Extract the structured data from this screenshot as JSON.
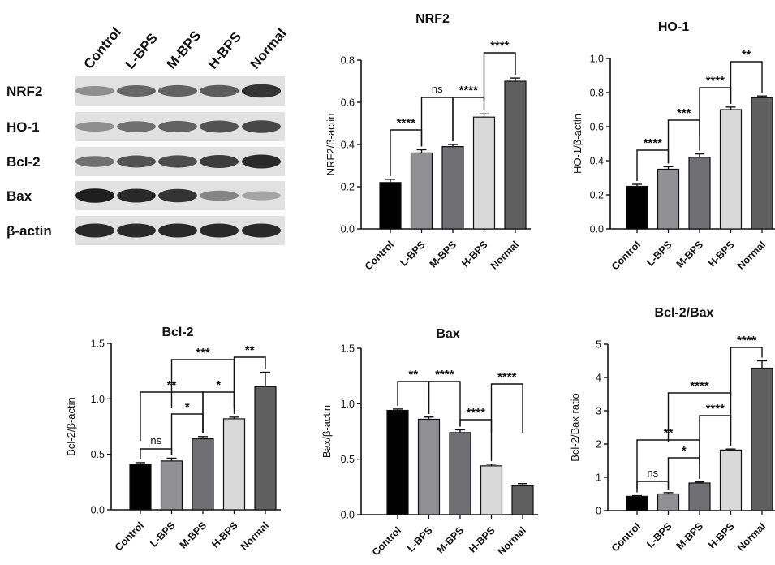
{
  "blot": {
    "lanes": [
      "Control",
      "L-BPS",
      "M-BPS",
      "H-BPS",
      "Normal"
    ],
    "rows": [
      {
        "label": "NRF2",
        "intensity": [
          0.4,
          0.6,
          0.62,
          0.65,
          0.85
        ]
      },
      {
        "label": "HO-1",
        "intensity": [
          0.4,
          0.55,
          0.62,
          0.7,
          0.75
        ]
      },
      {
        "label": "Bcl-2",
        "intensity": [
          0.55,
          0.7,
          0.72,
          0.8,
          0.9
        ]
      },
      {
        "label": "Bax",
        "intensity": [
          0.95,
          0.9,
          0.85,
          0.45,
          0.3
        ]
      },
      {
        "label": "β-actin",
        "intensity": [
          0.9,
          0.9,
          0.9,
          0.9,
          0.9
        ]
      }
    ]
  },
  "colors": {
    "bars": [
      "#000000",
      "#8f8f94",
      "#6e6e73",
      "#d9d9d9",
      "#5f5f5f"
    ]
  },
  "chart_data": [
    {
      "type": "bar",
      "title": "NRF2",
      "ylabel": "NRF2/β-actin",
      "categories": [
        "Control",
        "L-BPS",
        "M-BPS",
        "H-BPS",
        "Normal"
      ],
      "values": [
        0.22,
        0.36,
        0.39,
        0.53,
        0.7
      ],
      "errors": [
        0.015,
        0.015,
        0.01,
        0.015,
        0.015
      ],
      "ylim": [
        0,
        0.8
      ],
      "yticks": [
        "0.0",
        "0.2",
        "0.4",
        "0.6",
        "0.8"
      ],
      "comparisons": [
        {
          "from": 0,
          "to": 1,
          "label": "****"
        },
        {
          "from": 1,
          "to": 2,
          "label": "ns"
        },
        {
          "from": 2,
          "to": 3,
          "label": "****"
        },
        {
          "from": 3,
          "to": 4,
          "label": "****"
        }
      ]
    },
    {
      "type": "bar",
      "title": "HO-1",
      "ylabel": "HO-1/β-actin",
      "categories": [
        "Control",
        "L-BPS",
        "M-BPS",
        "H-BPS",
        "Normal"
      ],
      "values": [
        0.25,
        0.35,
        0.42,
        0.7,
        0.77
      ],
      "errors": [
        0.012,
        0.015,
        0.02,
        0.015,
        0.01
      ],
      "ylim": [
        0,
        1.0
      ],
      "yticks": [
        "0.0",
        "0.2",
        "0.4",
        "0.6",
        "0.8",
        "1.0"
      ],
      "comparisons": [
        {
          "from": 0,
          "to": 1,
          "label": "****"
        },
        {
          "from": 1,
          "to": 2,
          "label": "***"
        },
        {
          "from": 2,
          "to": 3,
          "label": "****"
        },
        {
          "from": 3,
          "to": 4,
          "label": "**"
        }
      ]
    },
    {
      "type": "bar",
      "title": "Bcl-2",
      "ylabel": "Bcl-2/β-actin",
      "categories": [
        "Control",
        "L-BPS",
        "M-BPS",
        "H-BPS",
        "Normal"
      ],
      "values": [
        0.41,
        0.44,
        0.64,
        0.82,
        1.11
      ],
      "errors": [
        0.015,
        0.025,
        0.02,
        0.015,
        0.13
      ],
      "ylim": [
        0,
        1.5
      ],
      "yticks": [
        "0.0",
        "0.5",
        "1.0",
        "1.5"
      ],
      "comparisons": [
        {
          "from": 0,
          "to": 1,
          "label": "ns"
        },
        {
          "from": 1,
          "to": 2,
          "label": "*"
        },
        {
          "from": 0,
          "to": 2,
          "label": "**"
        },
        {
          "from": 2,
          "to": 3,
          "label": "*"
        },
        {
          "from": 1,
          "to": 3,
          "label": "***"
        },
        {
          "from": 3,
          "to": 4,
          "label": "**"
        }
      ]
    },
    {
      "type": "bar",
      "title": "Bax",
      "ylabel": "Bax/β-actin",
      "categories": [
        "Control",
        "L-BPS",
        "M-BPS",
        "H-BPS",
        "Normal"
      ],
      "values": [
        0.94,
        0.86,
        0.74,
        0.44,
        0.26
      ],
      "errors": [
        0.012,
        0.02,
        0.025,
        0.015,
        0.02
      ],
      "ylim": [
        0,
        1.5
      ],
      "yticks": [
        "0.0",
        "0.5",
        "1.0",
        "1.5"
      ],
      "comparisons": [
        {
          "from": 0,
          "to": 1,
          "label": "**"
        },
        {
          "from": 1,
          "to": 2,
          "label": "****"
        },
        {
          "from": 2,
          "to": 3,
          "label": "****"
        },
        {
          "from": 3,
          "to": 4,
          "label": "****"
        }
      ]
    },
    {
      "type": "bar",
      "title": "Bcl-2/Bax",
      "ylabel": "Bcl-2/Bax ratio",
      "categories": [
        "Control",
        "L-BPS",
        "M-BPS",
        "H-BPS",
        "Normal"
      ],
      "values": [
        0.43,
        0.5,
        0.83,
        1.82,
        4.28
      ],
      "errors": [
        0.02,
        0.04,
        0.03,
        0.03,
        0.22
      ],
      "ylim": [
        0,
        5
      ],
      "yticks": [
        "0",
        "1",
        "2",
        "3",
        "4",
        "5"
      ],
      "comparisons": [
        {
          "from": 0,
          "to": 1,
          "label": "ns"
        },
        {
          "from": 1,
          "to": 2,
          "label": "*"
        },
        {
          "from": 0,
          "to": 2,
          "label": "**"
        },
        {
          "from": 2,
          "to": 3,
          "label": "****"
        },
        {
          "from": 1,
          "to": 3,
          "label": "****"
        },
        {
          "from": 3,
          "to": 4,
          "label": "****"
        }
      ]
    }
  ]
}
